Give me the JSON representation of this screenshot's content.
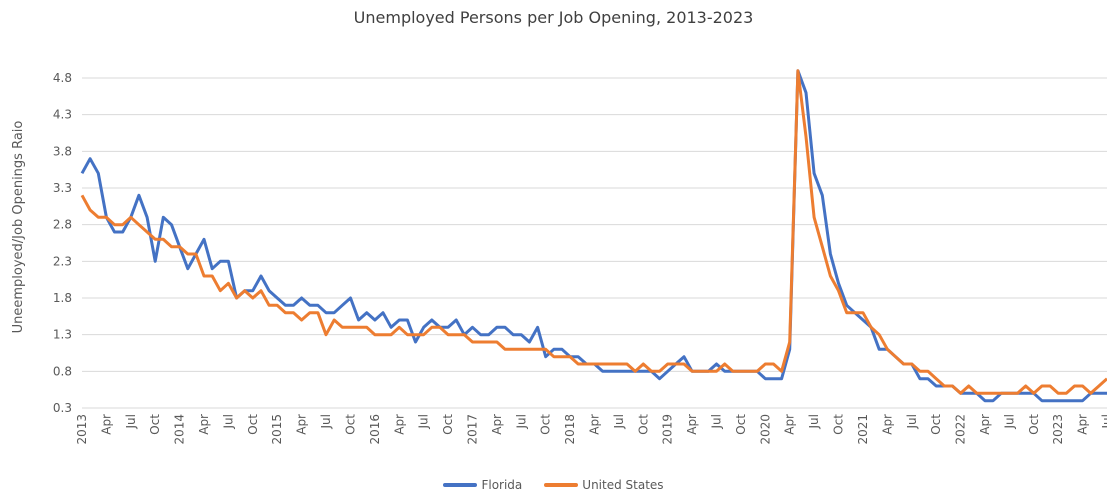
{
  "chart_data": {
    "type": "line",
    "title": "Unemployed Persons per Job Opening, 2013-2023",
    "xlabel": "",
    "ylabel": "Uneemployed/Job Openings Raio",
    "ylim": [
      0.3,
      4.8
    ],
    "yticks": [
      "4.8",
      "4.3",
      "3.8",
      "3.3",
      "2.8",
      "2.3",
      "1.8",
      "1.3",
      "0.8",
      "0.3"
    ],
    "grid": true,
    "legend": "bottom",
    "xtick_labels": [
      "2013",
      "Apr",
      "Jul",
      "Oct",
      "2014",
      "Apr",
      "Jul",
      "Oct",
      "2015",
      "Apr",
      "Jul",
      "Oct",
      "2016",
      "Apr",
      "Jul",
      "Oct",
      "2017",
      "Apr",
      "Jul",
      "Oct",
      "2018",
      "Apr",
      "Jul",
      "Oct",
      "2019",
      "Apr",
      "Jul",
      "Oct",
      "2020",
      "Apr",
      "Jul",
      "Oct",
      "2021",
      "Apr",
      "Jul",
      "Oct",
      "2022",
      "Apr",
      "Jul",
      "Oct",
      "2023",
      "Apr",
      "Jul"
    ],
    "x": [
      "2013-01",
      "2013-02",
      "2013-03",
      "2013-04",
      "2013-05",
      "2013-06",
      "2013-07",
      "2013-08",
      "2013-09",
      "2013-10",
      "2013-11",
      "2013-12",
      "2014-01",
      "2014-02",
      "2014-03",
      "2014-04",
      "2014-05",
      "2014-06",
      "2014-07",
      "2014-08",
      "2014-09",
      "2014-10",
      "2014-11",
      "2014-12",
      "2015-01",
      "2015-02",
      "2015-03",
      "2015-04",
      "2015-05",
      "2015-06",
      "2015-07",
      "2015-08",
      "2015-09",
      "2015-10",
      "2015-11",
      "2015-12",
      "2016-01",
      "2016-02",
      "2016-03",
      "2016-04",
      "2016-05",
      "2016-06",
      "2016-07",
      "2016-08",
      "2016-09",
      "2016-10",
      "2016-11",
      "2016-12",
      "2017-01",
      "2017-02",
      "2017-03",
      "2017-04",
      "2017-05",
      "2017-06",
      "2017-07",
      "2017-08",
      "2017-09",
      "2017-10",
      "2017-11",
      "2017-12",
      "2018-01",
      "2018-02",
      "2018-03",
      "2018-04",
      "2018-05",
      "2018-06",
      "2018-07",
      "2018-08",
      "2018-09",
      "2018-10",
      "2018-11",
      "2018-12",
      "2019-01",
      "2019-02",
      "2019-03",
      "2019-04",
      "2019-05",
      "2019-06",
      "2019-07",
      "2019-08",
      "2019-09",
      "2019-10",
      "2019-11",
      "2019-12",
      "2020-01",
      "2020-02",
      "2020-03",
      "2020-04",
      "2020-05",
      "2020-06",
      "2020-07",
      "2020-08",
      "2020-09",
      "2020-10",
      "2020-11",
      "2020-12",
      "2021-01",
      "2021-02",
      "2021-03",
      "2021-04",
      "2021-05",
      "2021-06",
      "2021-07",
      "2021-08",
      "2021-09",
      "2021-10",
      "2021-11",
      "2021-12",
      "2022-01",
      "2022-02",
      "2022-03",
      "2022-04",
      "2022-05",
      "2022-06",
      "2022-07",
      "2022-08",
      "2022-09",
      "2022-10",
      "2022-11",
      "2022-12",
      "2023-01",
      "2023-02",
      "2023-03",
      "2023-04",
      "2023-05",
      "2023-06",
      "2023-07"
    ],
    "series": [
      {
        "name": "Florida",
        "color": "#4472C4",
        "values": [
          3.5,
          3.7,
          3.5,
          2.9,
          2.7,
          2.7,
          2.9,
          3.2,
          2.9,
          2.3,
          2.9,
          2.8,
          2.5,
          2.2,
          2.4,
          2.6,
          2.2,
          2.3,
          2.3,
          1.8,
          1.9,
          1.9,
          2.1,
          1.9,
          1.8,
          1.7,
          1.7,
          1.8,
          1.7,
          1.7,
          1.6,
          1.6,
          1.7,
          1.8,
          1.5,
          1.6,
          1.5,
          1.6,
          1.4,
          1.5,
          1.5,
          1.2,
          1.4,
          1.5,
          1.4,
          1.4,
          1.5,
          1.3,
          1.4,
          1.3,
          1.3,
          1.4,
          1.4,
          1.3,
          1.3,
          1.2,
          1.4,
          1.0,
          1.1,
          1.1,
          1.0,
          1.0,
          0.9,
          0.9,
          0.8,
          0.8,
          0.8,
          0.8,
          0.8,
          0.8,
          0.8,
          0.7,
          0.8,
          0.9,
          1.0,
          0.8,
          0.8,
          0.8,
          0.9,
          0.8,
          0.8,
          0.8,
          0.8,
          0.8,
          0.7,
          0.7,
          0.7,
          1.1,
          4.9,
          4.6,
          3.5,
          3.2,
          2.4,
          2.0,
          1.7,
          1.6,
          1.5,
          1.4,
          1.1,
          1.1,
          1.0,
          0.9,
          0.9,
          0.7,
          0.7,
          0.6,
          0.6,
          0.6,
          0.5,
          0.5,
          0.5,
          0.4,
          0.4,
          0.5,
          0.5,
          0.5,
          0.5,
          0.5,
          0.4,
          0.4,
          0.4,
          0.4,
          0.4,
          0.4,
          0.5,
          0.5,
          0.5
        ]
      },
      {
        "name": "United States",
        "color": "#ED7D31",
        "values": [
          3.2,
          3.0,
          2.9,
          2.9,
          2.8,
          2.8,
          2.9,
          2.8,
          2.7,
          2.6,
          2.6,
          2.5,
          2.5,
          2.4,
          2.4,
          2.1,
          2.1,
          1.9,
          2.0,
          1.8,
          1.9,
          1.8,
          1.9,
          1.7,
          1.7,
          1.6,
          1.6,
          1.5,
          1.6,
          1.6,
          1.3,
          1.5,
          1.4,
          1.4,
          1.4,
          1.4,
          1.3,
          1.3,
          1.3,
          1.4,
          1.3,
          1.3,
          1.3,
          1.4,
          1.4,
          1.3,
          1.3,
          1.3,
          1.2,
          1.2,
          1.2,
          1.2,
          1.1,
          1.1,
          1.1,
          1.1,
          1.1,
          1.1,
          1.0,
          1.0,
          1.0,
          0.9,
          0.9,
          0.9,
          0.9,
          0.9,
          0.9,
          0.9,
          0.8,
          0.9,
          0.8,
          0.8,
          0.9,
          0.9,
          0.9,
          0.8,
          0.8,
          0.8,
          0.8,
          0.9,
          0.8,
          0.8,
          0.8,
          0.8,
          0.9,
          0.9,
          0.8,
          1.2,
          4.9,
          4.0,
          2.9,
          2.5,
          2.1,
          1.9,
          1.6,
          1.6,
          1.6,
          1.4,
          1.3,
          1.1,
          1.0,
          0.9,
          0.9,
          0.8,
          0.8,
          0.7,
          0.6,
          0.6,
          0.5,
          0.6,
          0.5,
          0.5,
          0.5,
          0.5,
          0.5,
          0.5,
          0.6,
          0.5,
          0.6,
          0.6,
          0.5,
          0.5,
          0.6,
          0.6,
          0.5,
          0.6,
          0.7
        ]
      }
    ]
  }
}
